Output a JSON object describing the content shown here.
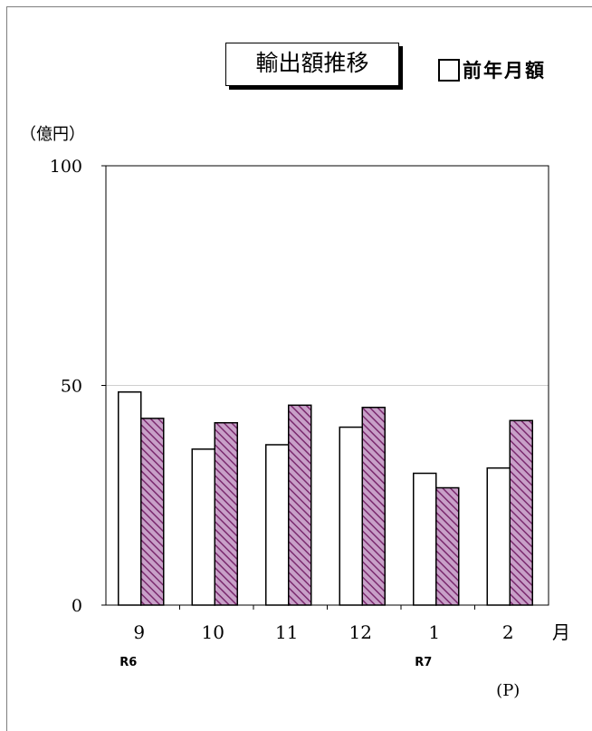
{
  "title": "輸出額推移",
  "legend": {
    "prev_year": "前年月額"
  },
  "unit": "（億円）",
  "month_suffix": "月",
  "era_labels": [
    {
      "label": "R6",
      "category_index": 0
    },
    {
      "label": "R7",
      "category_index": 4
    }
  ],
  "preliminary_note": "(P)",
  "colors": {
    "prev_year_fill": "#ffffff",
    "current_fill": "#c8a0c8",
    "current_hatch": "#7a2a6e",
    "gridline": "#bfbfbf"
  },
  "chart_data": {
    "type": "bar",
    "categories": [
      "9",
      "10",
      "11",
      "12",
      "1",
      "2"
    ],
    "series": [
      {
        "name": "前年月額",
        "values": [
          48.5,
          35.5,
          36.5,
          40.5,
          30.0,
          31.2
        ]
      },
      {
        "values": [
          42.5,
          41.5,
          45.5,
          45.0,
          26.7,
          42.0
        ]
      }
    ],
    "ylim": [
      0,
      100
    ],
    "yticks": [
      0,
      50,
      100
    ],
    "gridlines_at": [
      50
    ],
    "legend_position": "top-right"
  }
}
